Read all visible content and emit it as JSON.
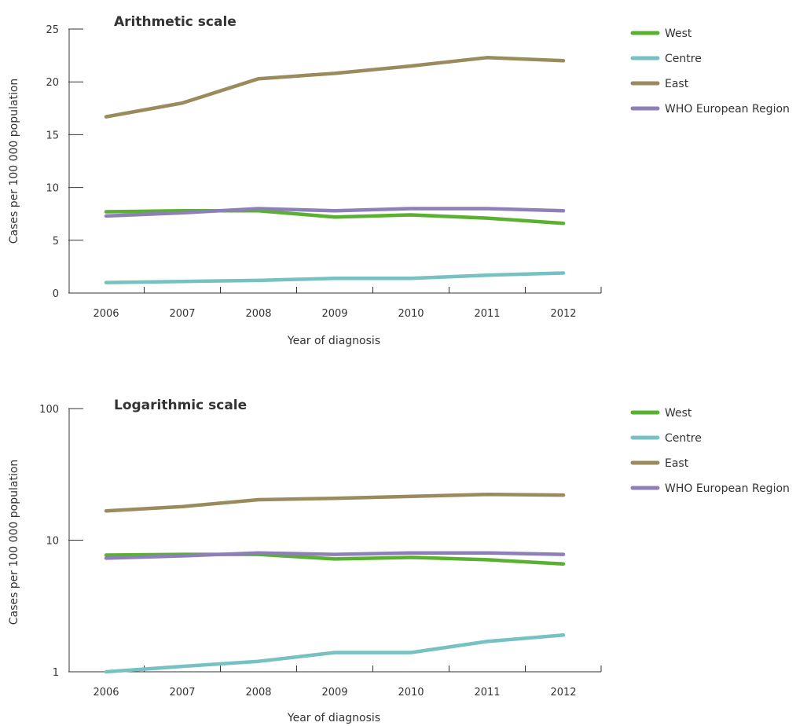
{
  "colors": {
    "West": "#5ab031",
    "Centre": "#76c1c1",
    "East": "#9a8b5d",
    "WHO European Region": "#8f7fb8"
  },
  "chart_data": [
    {
      "type": "line",
      "title": "Arithmetic scale",
      "xlabel": "Year of diagnosis",
      "ylabel": "Cases per 100 000 population",
      "scale": "linear",
      "ylim": [
        0,
        25
      ],
      "yticks": [
        0,
        5,
        10,
        15,
        20,
        25
      ],
      "ytick_labels": [
        "0",
        "5",
        "10",
        "15",
        "20",
        "25"
      ],
      "grid": false,
      "legend_position": "top-right",
      "categories": [
        "2006",
        "2007",
        "2008",
        "2009",
        "2010",
        "2011",
        "2012"
      ],
      "series": [
        {
          "name": "West",
          "values": [
            7.7,
            7.8,
            7.8,
            7.2,
            7.4,
            7.1,
            6.6
          ]
        },
        {
          "name": "Centre",
          "values": [
            1.0,
            1.1,
            1.2,
            1.4,
            1.4,
            1.7,
            1.9
          ]
        },
        {
          "name": "East",
          "values": [
            16.7,
            18.0,
            20.3,
            20.8,
            21.5,
            22.3,
            22.0
          ]
        },
        {
          "name": "WHO European Region",
          "values": [
            7.3,
            7.6,
            8.0,
            7.8,
            8.0,
            8.0,
            7.8
          ]
        }
      ]
    },
    {
      "type": "line",
      "title": "Logarithmic scale",
      "xlabel": "Year of diagnosis",
      "ylabel": "Cases per 100 000 population",
      "scale": "log",
      "ylim": [
        1,
        100
      ],
      "yticks": [
        1,
        10,
        100
      ],
      "ytick_labels": [
        "1",
        "10",
        "100"
      ],
      "grid": false,
      "legend_position": "top-right",
      "categories": [
        "2006",
        "2007",
        "2008",
        "2009",
        "2010",
        "2011",
        "2012"
      ],
      "series": [
        {
          "name": "West",
          "values": [
            7.7,
            7.8,
            7.8,
            7.2,
            7.4,
            7.1,
            6.6
          ]
        },
        {
          "name": "Centre",
          "values": [
            1.0,
            1.1,
            1.2,
            1.4,
            1.4,
            1.7,
            1.9
          ]
        },
        {
          "name": "East",
          "values": [
            16.7,
            18.0,
            20.3,
            20.8,
            21.5,
            22.3,
            22.0
          ]
        },
        {
          "name": "WHO European Region",
          "values": [
            7.3,
            7.6,
            8.0,
            7.8,
            8.0,
            8.0,
            7.8
          ]
        }
      ]
    }
  ]
}
